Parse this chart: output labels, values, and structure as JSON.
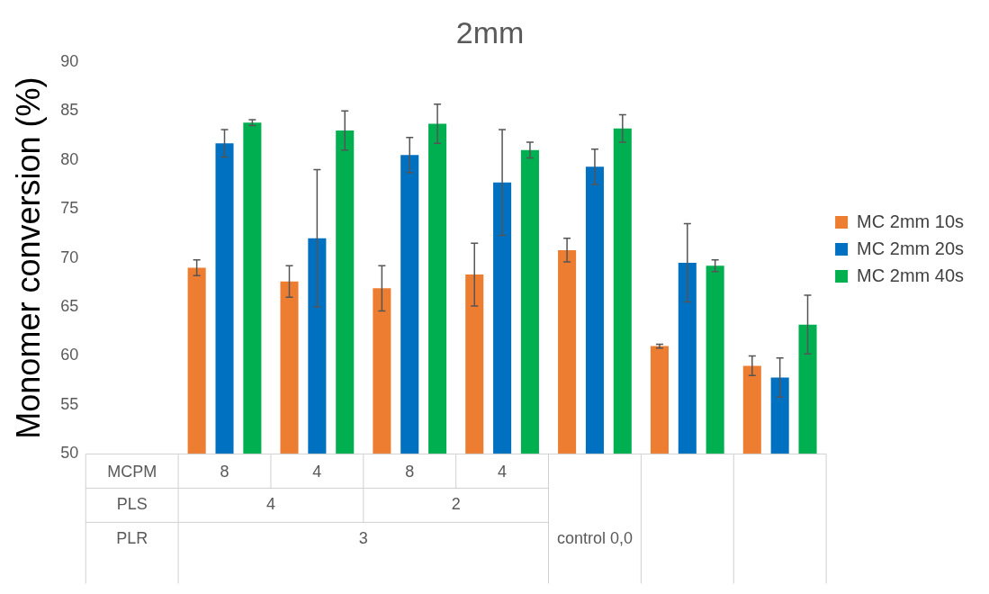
{
  "chart_data": {
    "type": "bar",
    "title": "2mm",
    "ylabel": "Monomer conversion (%)",
    "categories": [
      "MCPM",
      "8",
      "4",
      "8",
      "4",
      null,
      null,
      null
    ],
    "series": [
      {
        "name": "MC 2mm 10s",
        "color": "#ed7d31",
        "values": [
          null,
          69.0,
          67.6,
          66.9,
          68.3,
          70.8,
          61.0,
          59.0
        ],
        "errors": [
          null,
          0.8,
          1.6,
          2.3,
          3.2,
          1.2,
          0.2,
          1.0
        ]
      },
      {
        "name": "MC 2mm 20s",
        "color": "#0070c0",
        "values": [
          null,
          81.7,
          72.0,
          80.5,
          77.7,
          79.3,
          69.5,
          57.8
        ],
        "errors": [
          null,
          1.4,
          7.0,
          1.8,
          5.4,
          1.8,
          4.0,
          2.0
        ]
      },
      {
        "name": "MC 2mm 40s",
        "color": "#00b050",
        "values": [
          null,
          83.8,
          83.0,
          83.7,
          81.0,
          83.2,
          69.2,
          63.2
        ],
        "errors": [
          null,
          0.3,
          2.0,
          2.0,
          0.8,
          1.4,
          0.6,
          3.0
        ]
      }
    ],
    "ylim": [
      50,
      90
    ],
    "yticks": [
      50,
      55,
      60,
      65,
      70,
      75,
      80,
      85,
      90
    ],
    "grid": false,
    "legend": "right",
    "annotations": [
      "PLS",
      "4",
      "2",
      "PLR",
      "3",
      "control 0,0"
    ]
  }
}
